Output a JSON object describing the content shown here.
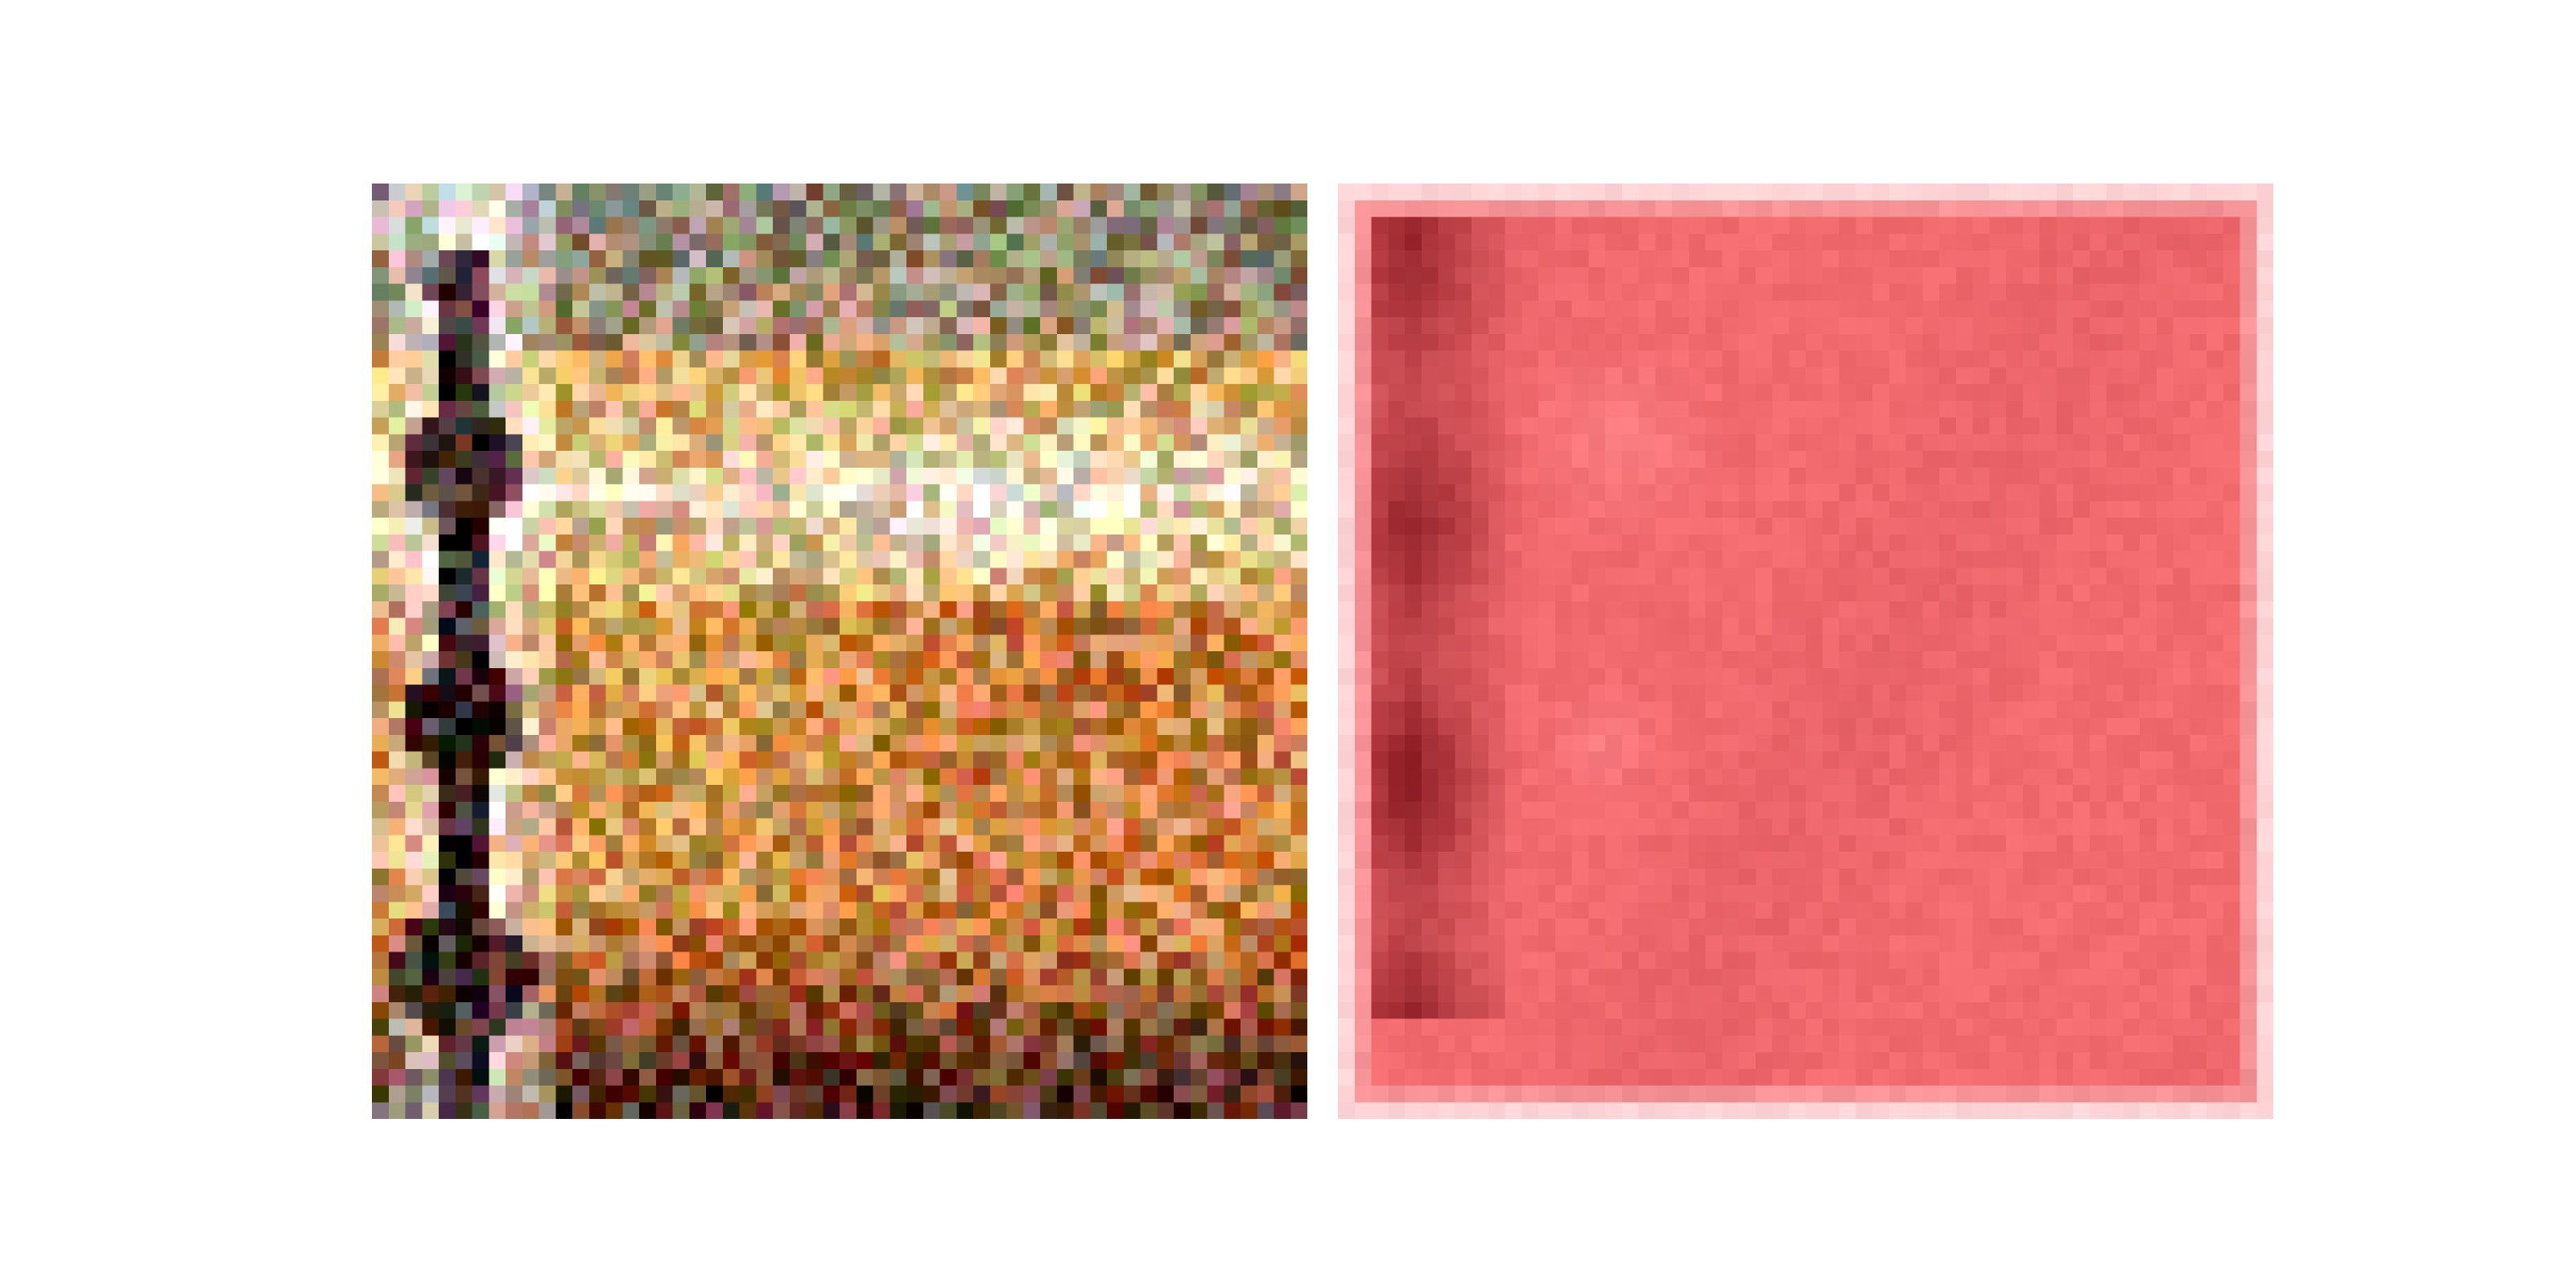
{
  "figure": {
    "panels": [
      {
        "kind": "input-image",
        "description_tag": "noisy-lighthouse-scene",
        "colors": {
          "sky_light": "#f2e8d8",
          "sky_grey": "#8a8474",
          "warm_mid": "#d9a65a",
          "orange": "#c9783a",
          "dark": "#2a0c08",
          "tower_dark": "#1a0303"
        }
      },
      {
        "kind": "saliency-heatmap",
        "colors": {
          "base": "#f26b6f",
          "dark": "#7a0e16",
          "light": "#ff8a8e",
          "border": "#ffd4d6"
        }
      }
    ]
  }
}
